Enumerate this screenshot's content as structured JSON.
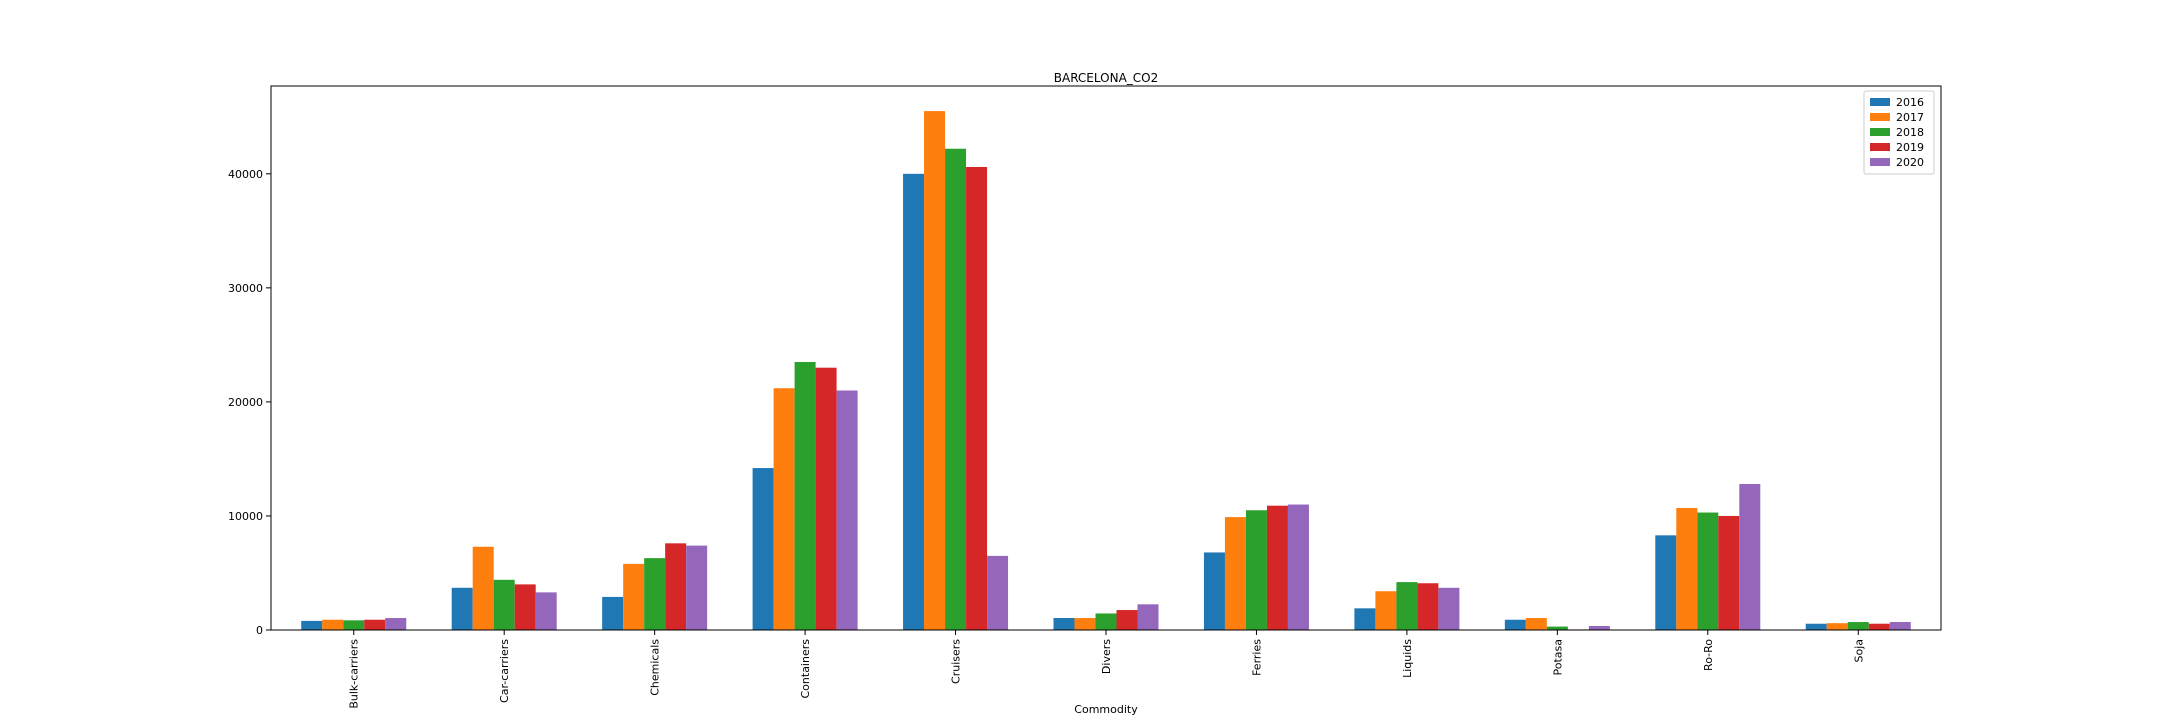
{
  "chart_data": {
    "type": "bar",
    "title": "BARCELONA_CO2",
    "xlabel": "Commodity",
    "ylabel": "",
    "ylim": [
      0,
      47700
    ],
    "yticks": [
      0,
      10000,
      20000,
      30000,
      40000
    ],
    "grid": false,
    "legend_position": "top-right",
    "categories": [
      "Bulk-carriers",
      "Car-carriers",
      "Chemicals",
      "Containers",
      "Cruisers",
      "Divers",
      "Ferries",
      "Liquids",
      "Potasa",
      "Ro-Ro",
      "Soja"
    ],
    "series": [
      {
        "name": "2016",
        "color": "#1f77b4",
        "values": [
          800,
          3700,
          2900,
          14200,
          40000,
          1050,
          6800,
          1900,
          900,
          8300,
          550
        ]
      },
      {
        "name": "2017",
        "color": "#ff7f0e",
        "values": [
          900,
          7300,
          5800,
          21200,
          45500,
          1050,
          9900,
          3400,
          1050,
          10700,
          600
        ]
      },
      {
        "name": "2018",
        "color": "#2ca02c",
        "values": [
          850,
          4400,
          6300,
          23500,
          42200,
          1450,
          10500,
          4200,
          300,
          10300,
          700
        ]
      },
      {
        "name": "2019",
        "color": "#d62728",
        "values": [
          900,
          4000,
          7600,
          23000,
          40600,
          1750,
          10900,
          4100,
          50,
          10000,
          550
        ]
      },
      {
        "name": "2020",
        "color": "#9467bd",
        "values": [
          1050,
          3300,
          7400,
          21000,
          6500,
          2250,
          11000,
          3700,
          350,
          12800,
          700
        ]
      }
    ]
  }
}
